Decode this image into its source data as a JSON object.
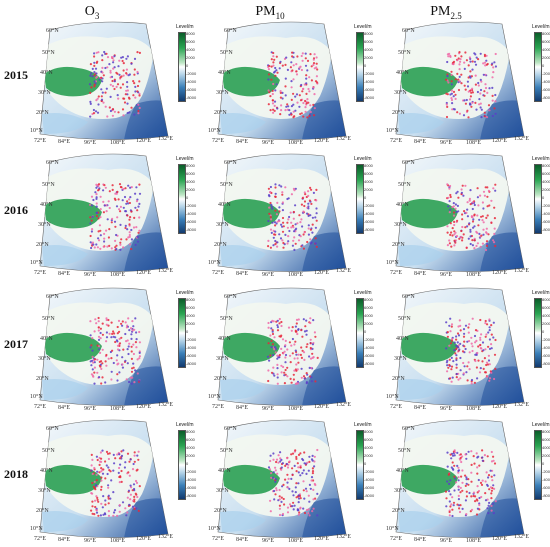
{
  "columns": [
    {
      "main": "O",
      "sub": "3"
    },
    {
      "main": "PM",
      "sub": "10"
    },
    {
      "main": "PM",
      "sub": "2.5"
    }
  ],
  "rows": [
    "2015",
    "2016",
    "2017",
    "2018"
  ],
  "legend": {
    "title": "Level/m",
    "ticks": [
      "8000",
      "6000",
      "4000",
      "2000",
      "0",
      "-2000",
      "-4000",
      "-6000",
      "-8000"
    ]
  },
  "lon_labels": [
    "72°E",
    "84°E",
    "96°E",
    "108°E",
    "120°E",
    "132°E"
  ],
  "lat_labels": [
    "10°N",
    "20°N",
    "30°N",
    "40°N",
    "50°N",
    "60°N"
  ],
  "colors": {
    "land_high": "#1f9a4a",
    "land_low": "#f2f7f0",
    "sea_deep": "#1f4e9a",
    "sea_shallow": "#c9dff0",
    "site_red": "#e8283c",
    "site_purple": "#5b3fc8",
    "site_pink": "#f06aa8"
  }
}
